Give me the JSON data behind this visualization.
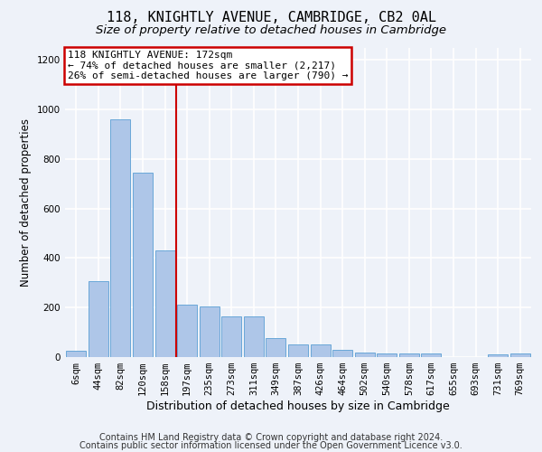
{
  "title": "118, KNIGHTLY AVENUE, CAMBRIDGE, CB2 0AL",
  "subtitle": "Size of property relative to detached houses in Cambridge",
  "xlabel": "Distribution of detached houses by size in Cambridge",
  "ylabel": "Number of detached properties",
  "footer_line1": "Contains HM Land Registry data © Crown copyright and database right 2024.",
  "footer_line2": "Contains public sector information licensed under the Open Government Licence v3.0.",
  "bar_labels": [
    "6sqm",
    "44sqm",
    "82sqm",
    "120sqm",
    "158sqm",
    "197sqm",
    "235sqm",
    "273sqm",
    "311sqm",
    "349sqm",
    "387sqm",
    "426sqm",
    "464sqm",
    "502sqm",
    "540sqm",
    "578sqm",
    "617sqm",
    "655sqm",
    "693sqm",
    "731sqm",
    "769sqm"
  ],
  "bar_values": [
    25,
    305,
    960,
    745,
    430,
    210,
    205,
    165,
    165,
    75,
    50,
    50,
    30,
    20,
    15,
    15,
    15,
    0,
    0,
    10,
    15
  ],
  "bar_color": "#aec6e8",
  "bar_edge_color": "#5a9fd4",
  "ylim": [
    0,
    1250
  ],
  "yticks": [
    0,
    200,
    400,
    600,
    800,
    1000,
    1200
  ],
  "property_label": "118 KNIGHTLY AVENUE: 172sqm",
  "annotation_line1": "← 74% of detached houses are smaller (2,217)",
  "annotation_line2": "26% of semi-detached houses are larger (790) →",
  "vline_x": 4.5,
  "annotation_box_color": "#ffffff",
  "annotation_box_edge": "#cc0000",
  "vline_color": "#cc0000",
  "background_color": "#eef2f9",
  "grid_color": "#ffffff",
  "title_fontsize": 11,
  "subtitle_fontsize": 9.5,
  "axis_label_fontsize": 8.5,
  "tick_fontsize": 7.5,
  "footer_fontsize": 7,
  "annotation_fontsize": 8
}
